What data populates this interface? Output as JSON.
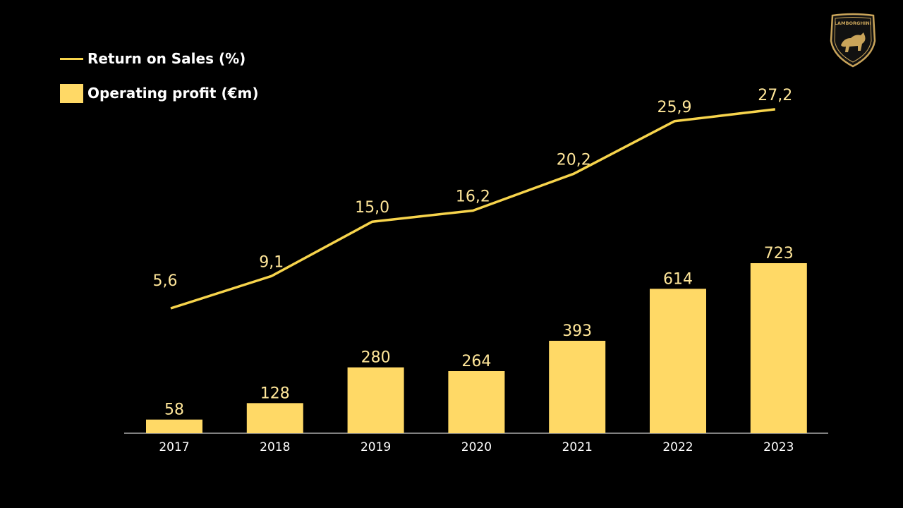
{
  "legend": {
    "line_label": "Return on Sales (%)",
    "bar_label": "Operating profit (€m)"
  },
  "logo": {
    "text": "LAMBORGHINI"
  },
  "colors": {
    "background": "#000000",
    "bar": "#ffd966",
    "line": "#f7d44c",
    "bar_label": "#ffe699",
    "line_label": "#ffe699",
    "axis_text": "#ffffff",
    "axis_line": "#ffffff",
    "logo_gold": "#c9a45a"
  },
  "chart_data": {
    "type": "bar",
    "categories": [
      "2017",
      "2018",
      "2019",
      "2020",
      "2021",
      "2022",
      "2023"
    ],
    "series": [
      {
        "name": "Operating profit (€m)",
        "type": "bar",
        "values": [
          58,
          128,
          280,
          264,
          393,
          614,
          723
        ],
        "labels": [
          "58",
          "128",
          "280",
          "264",
          "393",
          "614",
          "723"
        ]
      },
      {
        "name": "Return on Sales (%)",
        "type": "line",
        "values": [
          5.6,
          9.1,
          15.0,
          16.2,
          20.2,
          25.9,
          27.2
        ],
        "labels": [
          "5,6",
          "9,1",
          "15,0",
          "16,2",
          "20,2",
          "25,9",
          "27,2"
        ]
      }
    ],
    "legend_position": "top-left",
    "grid": false
  }
}
